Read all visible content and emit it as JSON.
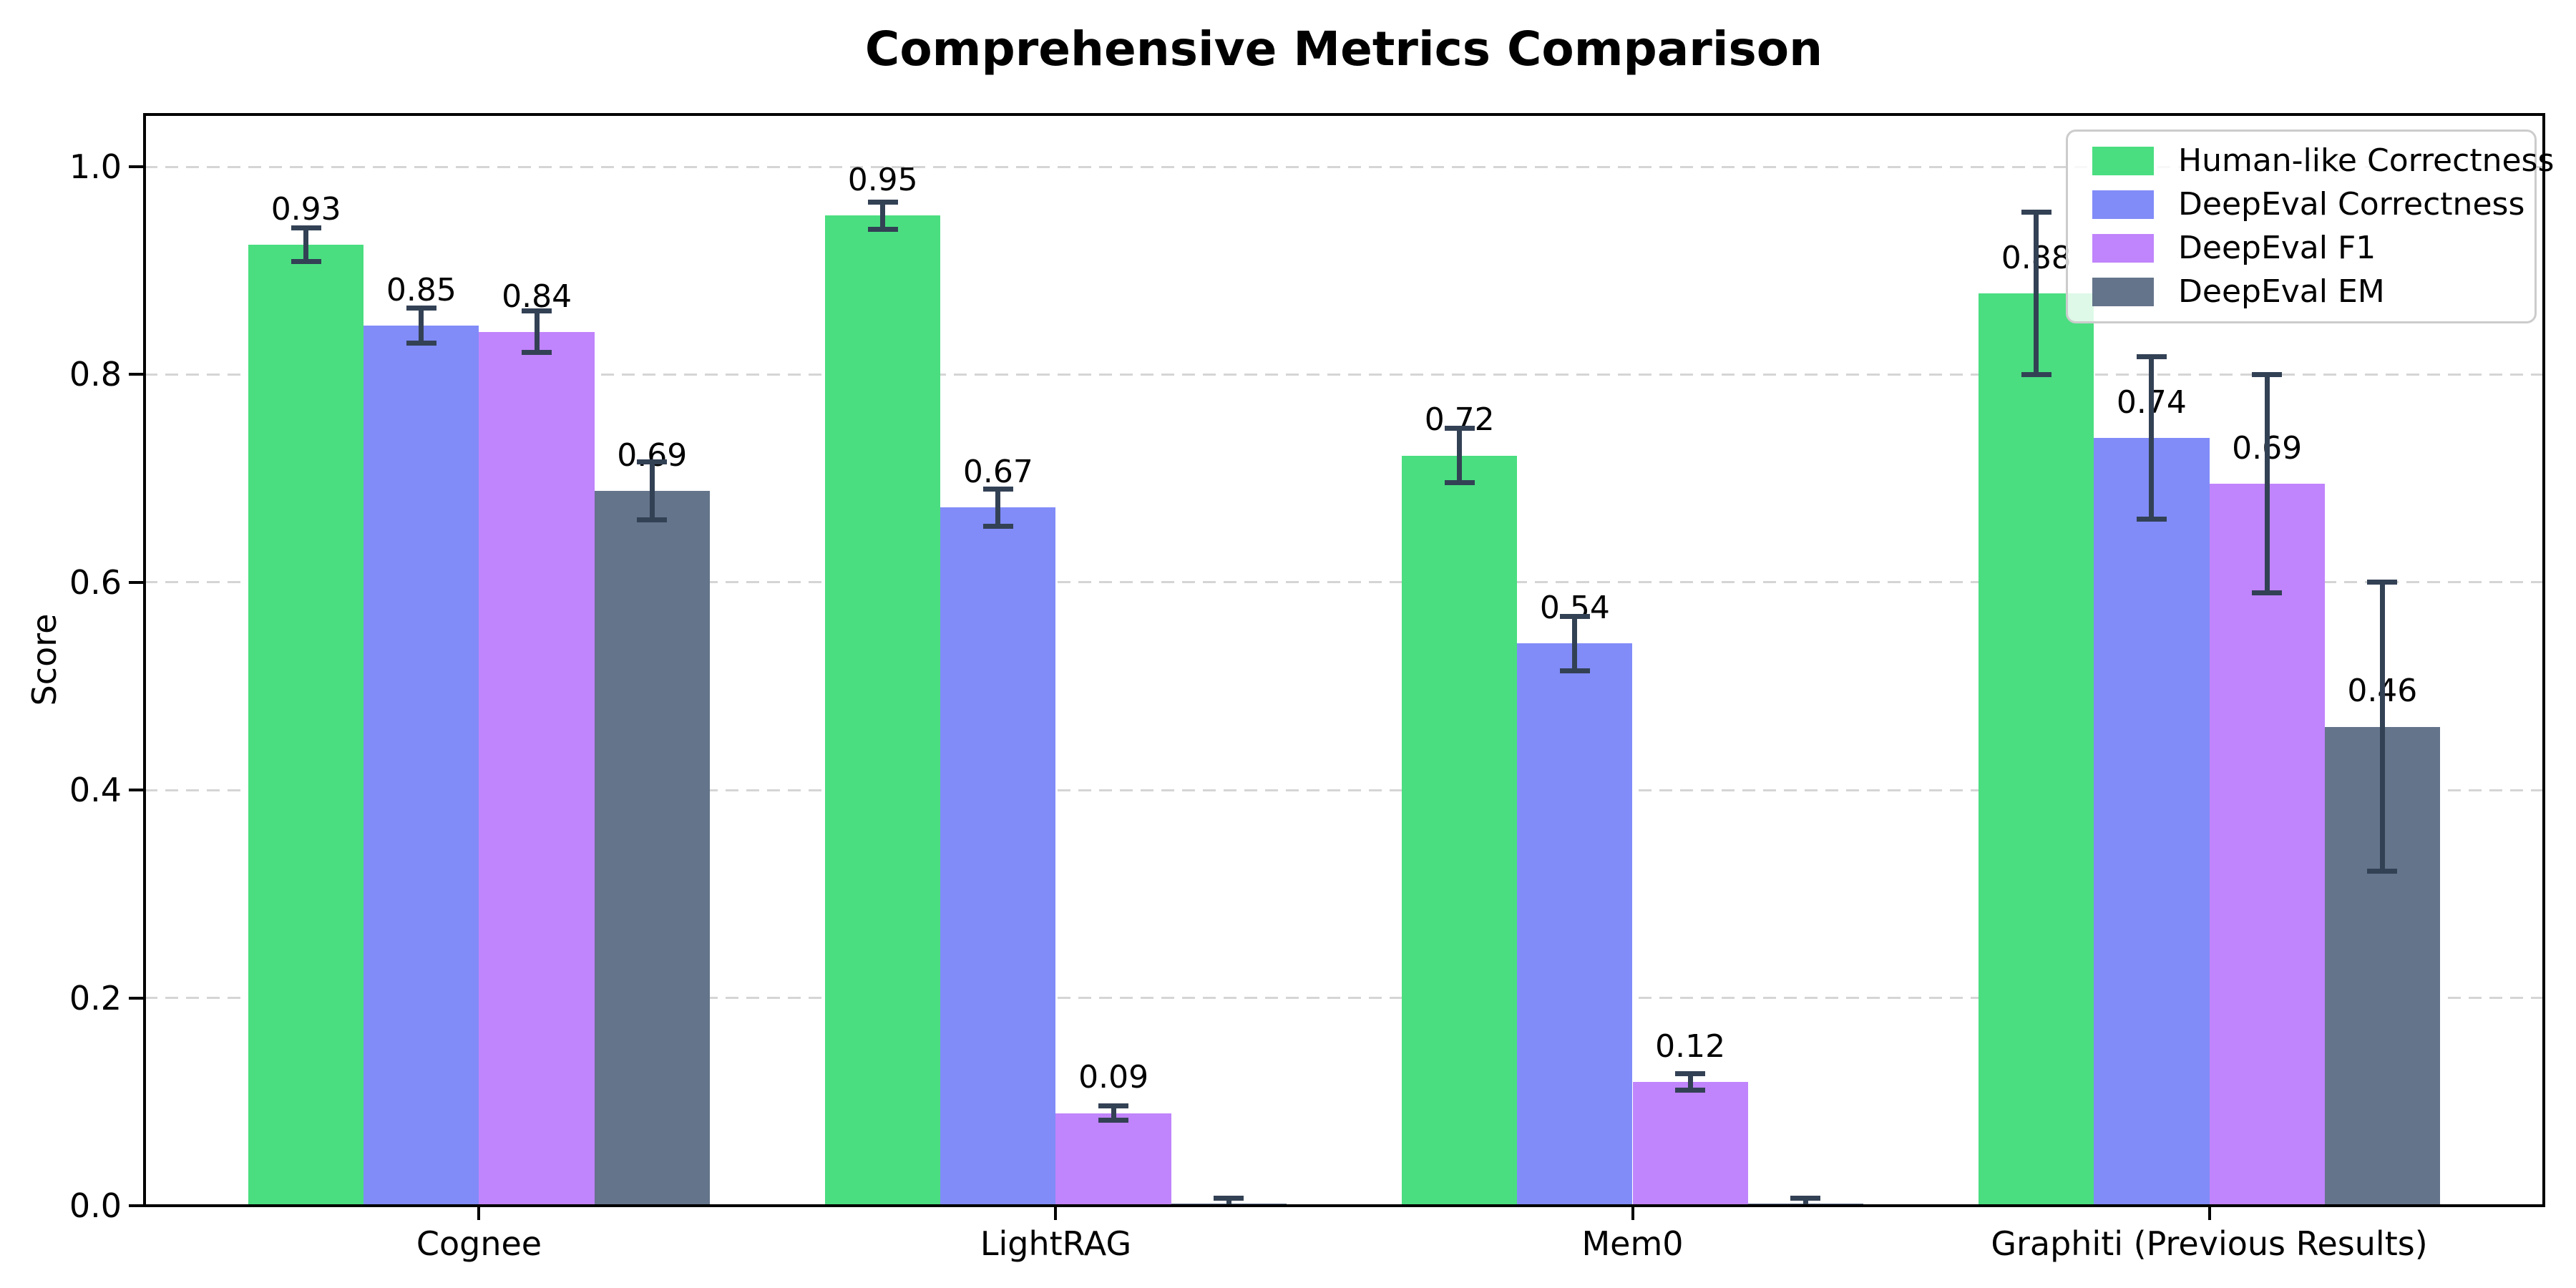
{
  "figure": {
    "title": "Comprehensive Metrics Comparison",
    "ylabel": "Score"
  },
  "chart_data": {
    "type": "bar",
    "title": "Comprehensive Metrics Comparison",
    "xlabel": "",
    "ylabel": "Score",
    "categories": [
      "Cognee",
      "LightRAG",
      "Mem0",
      "Graphiti (Previous Results)"
    ],
    "series": [
      {
        "name": "Human-like Correctness",
        "color": "#4ade80",
        "values": [
          0.925,
          0.953,
          0.722,
          0.878
        ],
        "errors": [
          0.016,
          0.013,
          0.026,
          0.078
        ],
        "labels": [
          "0.93",
          "0.95",
          "0.72",
          "0.88"
        ]
      },
      {
        "name": "DeepEval Correctness",
        "color": "#818cf8",
        "values": [
          0.847,
          0.672,
          0.541,
          0.739
        ],
        "errors": [
          0.017,
          0.018,
          0.026,
          0.078
        ],
        "labels": [
          "0.85",
          "0.67",
          "0.54",
          "0.74"
        ]
      },
      {
        "name": "DeepEval F1",
        "color": "#c084fc",
        "values": [
          0.841,
          0.089,
          0.119,
          0.695
        ],
        "errors": [
          0.02,
          0.007,
          0.008,
          0.105
        ],
        "labels": [
          "0.84",
          "0.09",
          "0.12",
          "0.69"
        ]
      },
      {
        "name": "DeepEval EM",
        "color": "#64748b",
        "values": [
          0.688,
          0.002,
          0.002,
          0.461
        ],
        "errors": [
          0.028,
          0.005,
          0.005,
          0.139
        ],
        "labels": [
          "0.69",
          "",
          "",
          "0.46"
        ]
      }
    ],
    "yticks": [
      0.0,
      0.2,
      0.4,
      0.6,
      0.8,
      1.0
    ],
    "ytick_labels": [
      "0.0",
      "0.2",
      "0.4",
      "0.6",
      "0.8",
      "1.0"
    ],
    "ylim": [
      0,
      1.0503
    ],
    "grid": "horizontal-dashed",
    "legend_position": "upper right",
    "colors": {
      "errorbar": "#334155",
      "grid": "#d5d5d5",
      "axis": "#000000",
      "text": "#000000",
      "legend_border": "#cccccc"
    }
  }
}
